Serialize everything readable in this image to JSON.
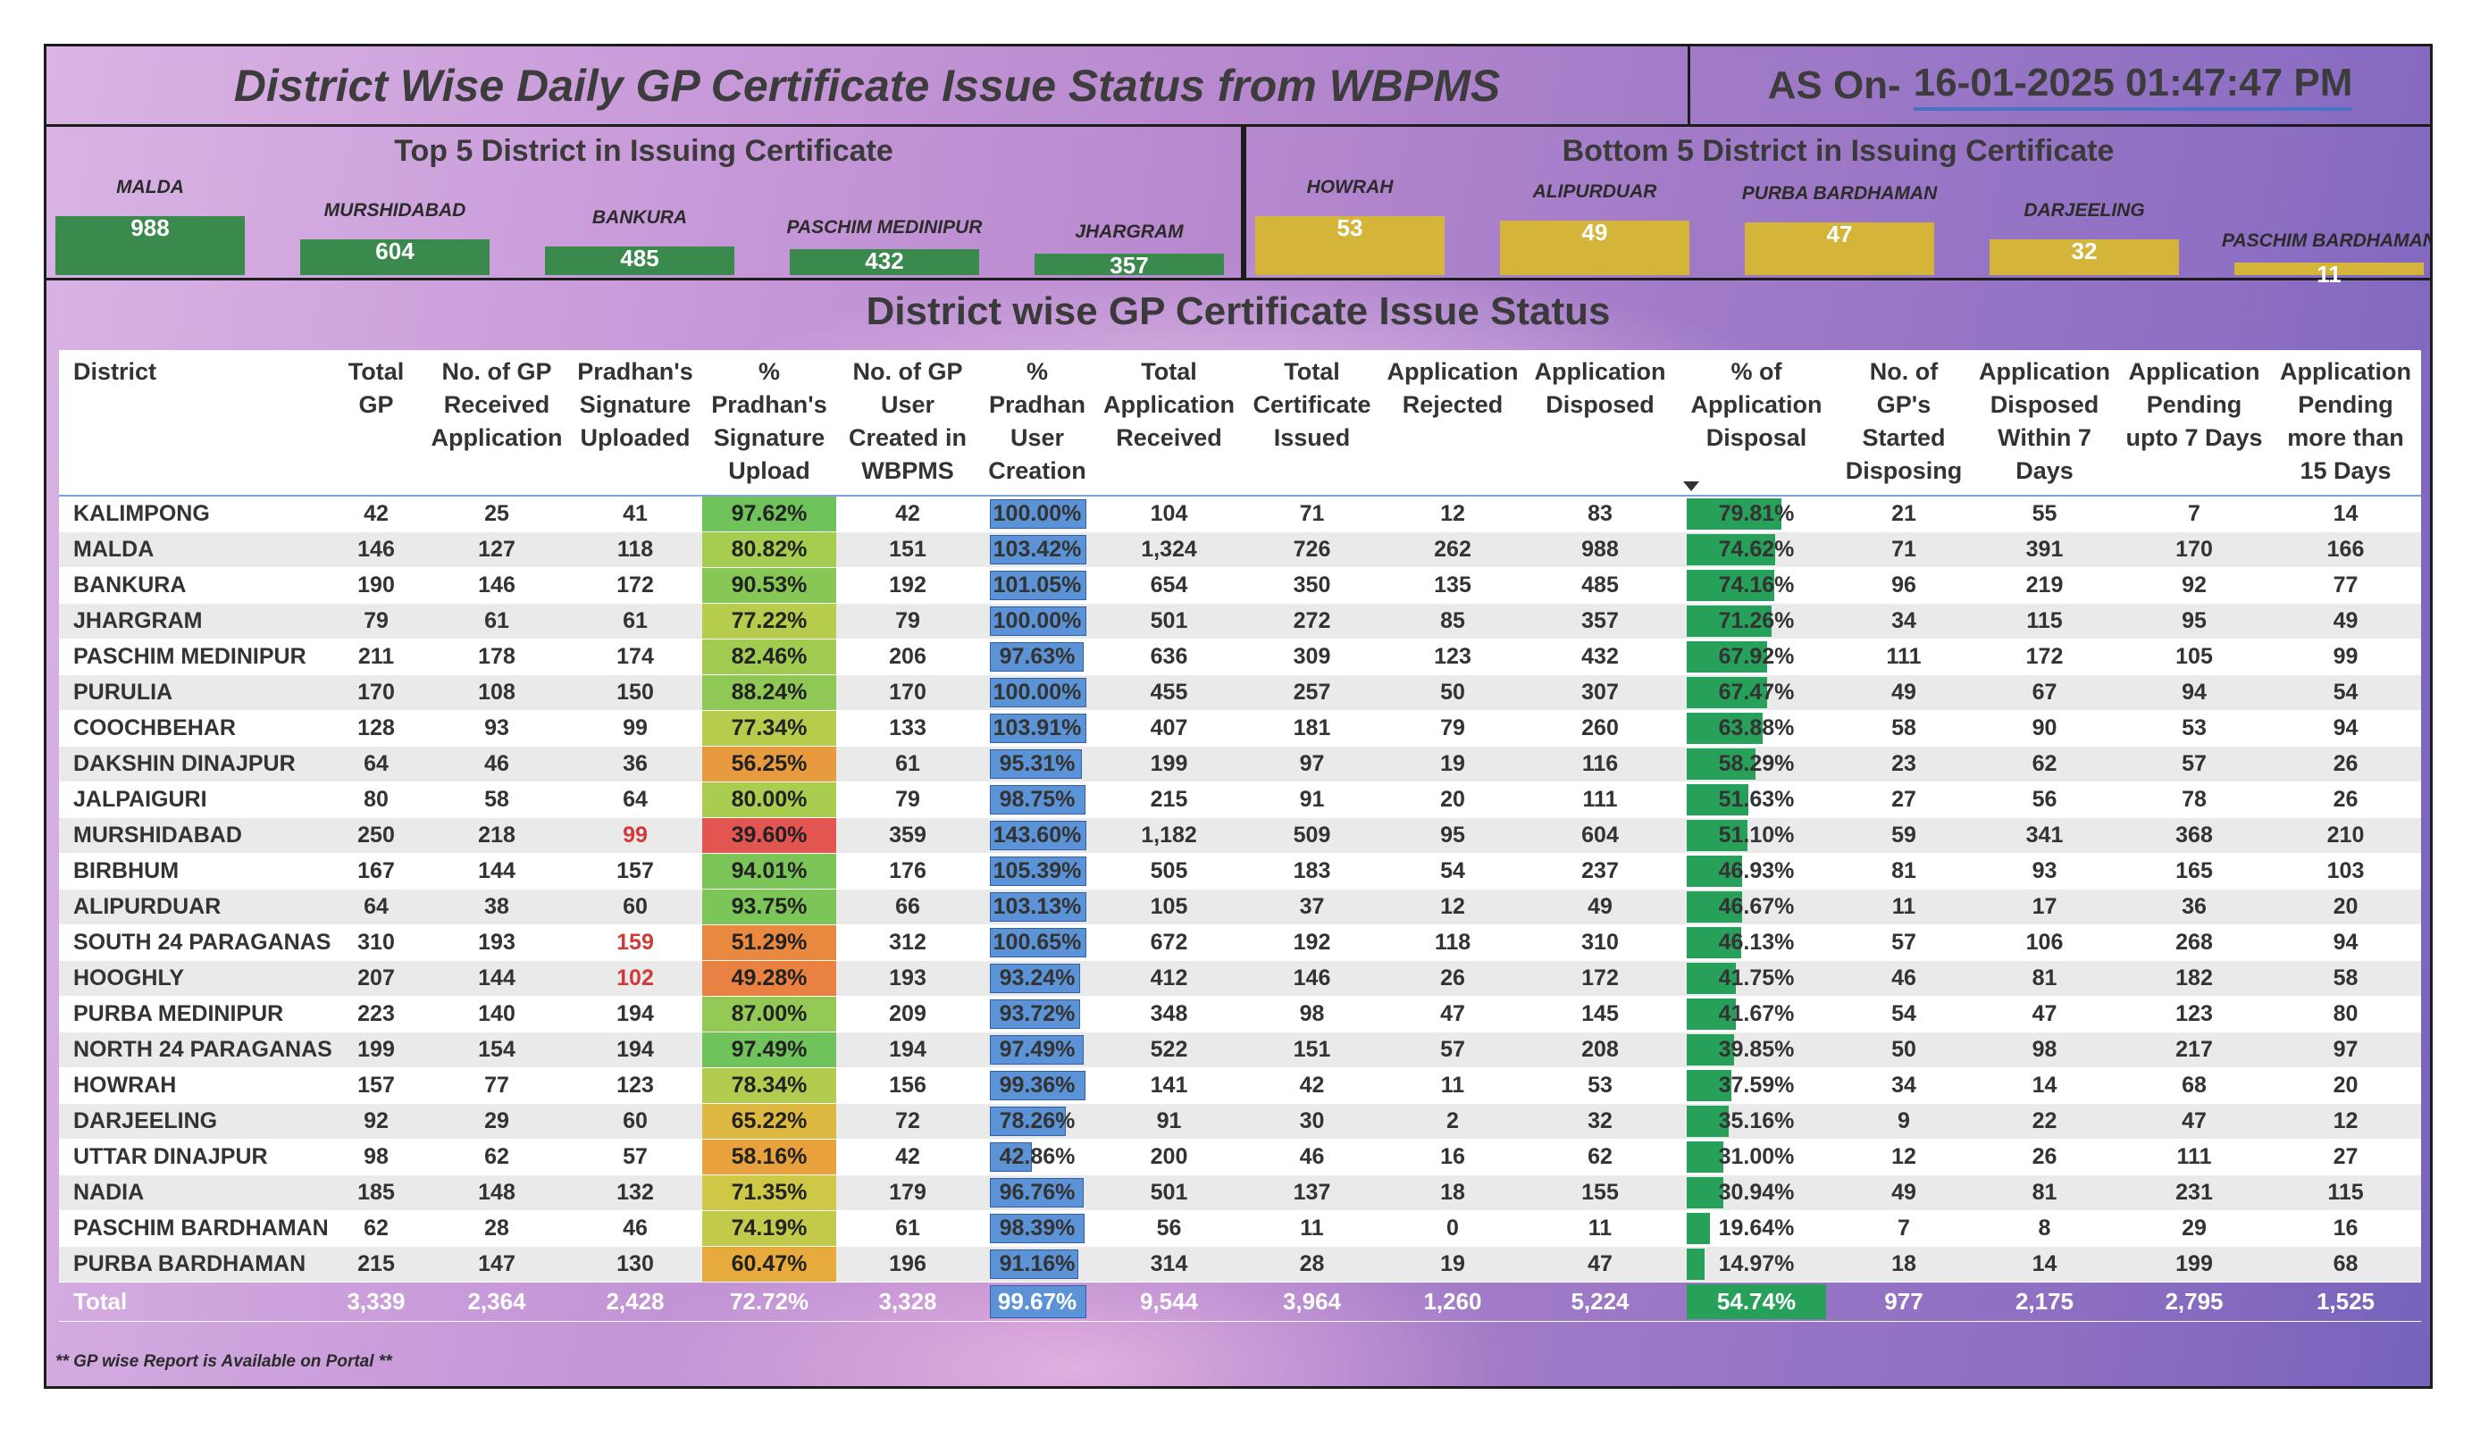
{
  "header": {
    "title": "District Wise Daily GP Certificate Issue Status from WBPMS",
    "asof_label": "AS On-",
    "asof_value": "16-01-2025 01:47:47 PM"
  },
  "top5": {
    "title": "Top 5 District in Issuing Certificate",
    "bar_color": "#3a8a4e",
    "items": [
      {
        "name": "MALDA",
        "value": 988
      },
      {
        "name": "MURSHIDABAD",
        "value": 604
      },
      {
        "name": "BANKURA",
        "value": 485
      },
      {
        "name": "PASCHIM MEDINIPUR",
        "value": 432
      },
      {
        "name": "JHARGRAM",
        "value": 357
      }
    ]
  },
  "bottom5": {
    "title": "Bottom 5 District in Issuing Certificate",
    "bar_color": "#d4b53a",
    "items": [
      {
        "name": "HOWRAH",
        "value": 53
      },
      {
        "name": "ALIPURDUAR",
        "value": 49
      },
      {
        "name": "PURBA BARDHAMAN",
        "value": 47
      },
      {
        "name": "DARJEELING",
        "value": 32
      },
      {
        "name": "PASCHIM BARDHAMAN",
        "value": 11
      }
    ]
  },
  "table": {
    "title": "District wise GP Certificate Issue Status",
    "sorted_column": "% of Application Disposal",
    "columns": [
      "District",
      "Total GP",
      "No. of GP Received Application",
      "Pradhan's Signature Uploaded",
      "% Pradhan's Signature Upload",
      "No. of GP User Created in WBPMS",
      "% Pradhan User Creation",
      "Total Application Received",
      "Total Certificate Issued",
      "Application Rejected",
      "Application Disposed",
      "% of Application Disposal",
      "No. of GP's Started Disposing",
      "Application Disposed Within 7 Days",
      "Application Pending upto 7 Days",
      "Application Pending more than 15 Days"
    ],
    "rows": [
      [
        "KALIMPONG",
        "42",
        "25",
        "41",
        "97.62%",
        "42",
        "100.00%",
        "104",
        "71",
        "12",
        "83",
        "79.81%",
        "21",
        "55",
        "7",
        "14"
      ],
      [
        "MALDA",
        "146",
        "127",
        "118",
        "80.82%",
        "151",
        "103.42%",
        "1,324",
        "726",
        "262",
        "988",
        "74.62%",
        "71",
        "391",
        "170",
        "166"
      ],
      [
        "BANKURA",
        "190",
        "146",
        "172",
        "90.53%",
        "192",
        "101.05%",
        "654",
        "350",
        "135",
        "485",
        "74.16%",
        "96",
        "219",
        "92",
        "77"
      ],
      [
        "JHARGRAM",
        "79",
        "61",
        "61",
        "77.22%",
        "79",
        "100.00%",
        "501",
        "272",
        "85",
        "357",
        "71.26%",
        "34",
        "115",
        "95",
        "49"
      ],
      [
        "PASCHIM MEDINIPUR",
        "211",
        "178",
        "174",
        "82.46%",
        "206",
        "97.63%",
        "636",
        "309",
        "123",
        "432",
        "67.92%",
        "111",
        "172",
        "105",
        "99"
      ],
      [
        "PURULIA",
        "170",
        "108",
        "150",
        "88.24%",
        "170",
        "100.00%",
        "455",
        "257",
        "50",
        "307",
        "67.47%",
        "49",
        "67",
        "94",
        "54"
      ],
      [
        "COOCHBEHAR",
        "128",
        "93",
        "99",
        "77.34%",
        "133",
        "103.91%",
        "407",
        "181",
        "79",
        "260",
        "63.88%",
        "58",
        "90",
        "53",
        "94"
      ],
      [
        "DAKSHIN DINAJPUR",
        "64",
        "46",
        "36",
        "56.25%",
        "61",
        "95.31%",
        "199",
        "97",
        "19",
        "116",
        "58.29%",
        "23",
        "62",
        "57",
        "26"
      ],
      [
        "JALPAIGURI",
        "80",
        "58",
        "64",
        "80.00%",
        "79",
        "98.75%",
        "215",
        "91",
        "20",
        "111",
        "51.63%",
        "27",
        "56",
        "78",
        "26"
      ],
      [
        "MURSHIDABAD",
        "250",
        "218",
        "99",
        "39.60%",
        "359",
        "143.60%",
        "1,182",
        "509",
        "95",
        "604",
        "51.10%",
        "59",
        "341",
        "368",
        "210"
      ],
      [
        "BIRBHUM",
        "167",
        "144",
        "157",
        "94.01%",
        "176",
        "105.39%",
        "505",
        "183",
        "54",
        "237",
        "46.93%",
        "81",
        "93",
        "165",
        "103"
      ],
      [
        "ALIPURDUAR",
        "64",
        "38",
        "60",
        "93.75%",
        "66",
        "103.13%",
        "105",
        "37",
        "12",
        "49",
        "46.67%",
        "11",
        "17",
        "36",
        "20"
      ],
      [
        "SOUTH 24 PARAGANAS",
        "310",
        "193",
        "159",
        "51.29%",
        "312",
        "100.65%",
        "672",
        "192",
        "118",
        "310",
        "46.13%",
        "57",
        "106",
        "268",
        "94"
      ],
      [
        "HOOGHLY",
        "207",
        "144",
        "102",
        "49.28%",
        "193",
        "93.24%",
        "412",
        "146",
        "26",
        "172",
        "41.75%",
        "46",
        "81",
        "182",
        "58"
      ],
      [
        "PURBA MEDINIPUR",
        "223",
        "140",
        "194",
        "87.00%",
        "209",
        "93.72%",
        "348",
        "98",
        "47",
        "145",
        "41.67%",
        "54",
        "47",
        "123",
        "80"
      ],
      [
        "NORTH 24 PARAGANAS",
        "199",
        "154",
        "194",
        "97.49%",
        "194",
        "97.49%",
        "522",
        "151",
        "57",
        "208",
        "39.85%",
        "50",
        "98",
        "217",
        "97"
      ],
      [
        "HOWRAH",
        "157",
        "77",
        "123",
        "78.34%",
        "156",
        "99.36%",
        "141",
        "42",
        "11",
        "53",
        "37.59%",
        "34",
        "14",
        "68",
        "20"
      ],
      [
        "DARJEELING",
        "92",
        "29",
        "60",
        "65.22%",
        "72",
        "78.26%",
        "91",
        "30",
        "2",
        "32",
        "35.16%",
        "9",
        "22",
        "47",
        "12"
      ],
      [
        "UTTAR DINAJPUR",
        "98",
        "62",
        "57",
        "58.16%",
        "42",
        "42.86%",
        "200",
        "46",
        "16",
        "62",
        "31.00%",
        "12",
        "26",
        "111",
        "27"
      ],
      [
        "NADIA",
        "185",
        "148",
        "132",
        "71.35%",
        "179",
        "96.76%",
        "501",
        "137",
        "18",
        "155",
        "30.94%",
        "49",
        "81",
        "231",
        "115"
      ],
      [
        "PASCHIM BARDHAMAN",
        "62",
        "28",
        "46",
        "74.19%",
        "61",
        "98.39%",
        "56",
        "11",
        "0",
        "11",
        "19.64%",
        "7",
        "8",
        "29",
        "16"
      ],
      [
        "PURBA BARDHAMAN",
        "215",
        "147",
        "130",
        "60.47%",
        "196",
        "91.16%",
        "314",
        "28",
        "19",
        "47",
        "14.97%",
        "18",
        "14",
        "199",
        "68"
      ]
    ],
    "red_signature_rows": [
      9,
      12,
      13
    ],
    "total": [
      "Total",
      "3,339",
      "2,364",
      "2,428",
      "72.72%",
      "3,328",
      "99.67%",
      "9,544",
      "3,964",
      "1,260",
      "5,224",
      "54.74%",
      "977",
      "2,175",
      "2,795",
      "1,525"
    ]
  },
  "footer": {
    "note": "** GP wise Report is Available on Portal **"
  }
}
